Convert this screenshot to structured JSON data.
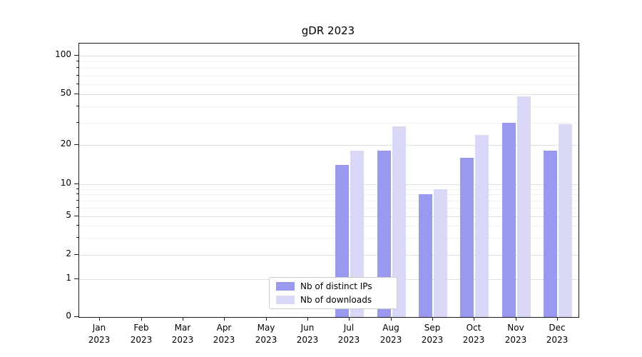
{
  "chart_data": {
    "type": "bar",
    "title": "gDR 2023",
    "year": "2023",
    "months": [
      "Jan",
      "Feb",
      "Mar",
      "Apr",
      "May",
      "Jun",
      "Jul",
      "Aug",
      "Sep",
      "Oct",
      "Nov",
      "Dec"
    ],
    "categories": [
      "Jan 2023",
      "Feb 2023",
      "Mar 2023",
      "Apr 2023",
      "May 2023",
      "Jun 2023",
      "Jul 2023",
      "Aug 2023",
      "Sep 2023",
      "Oct 2023",
      "Nov 2023",
      "Dec 2023"
    ],
    "series": [
      {
        "name": "Nb of distinct IPs",
        "color": "#9999ee",
        "values": [
          0,
          0,
          0,
          0,
          0,
          0,
          14,
          18,
          8,
          16,
          30,
          18
        ]
      },
      {
        "name": "Nb of downloads",
        "color": "#d8d8f6",
        "values": [
          0,
          0,
          0,
          0,
          0,
          0,
          18,
          28,
          9,
          24,
          48,
          29
        ]
      }
    ],
    "yscale": "symlog",
    "yticks": [
      0,
      1,
      2,
      5,
      10,
      20,
      50,
      100
    ],
    "minor_gridline_values": [
      3,
      4,
      6,
      7,
      8,
      9,
      30,
      40,
      60,
      70,
      80,
      90
    ],
    "ylim": [
      0,
      100
    ],
    "grid": true,
    "legend_position": "lower-center-inside",
    "xlabel": "",
    "ylabel": ""
  }
}
